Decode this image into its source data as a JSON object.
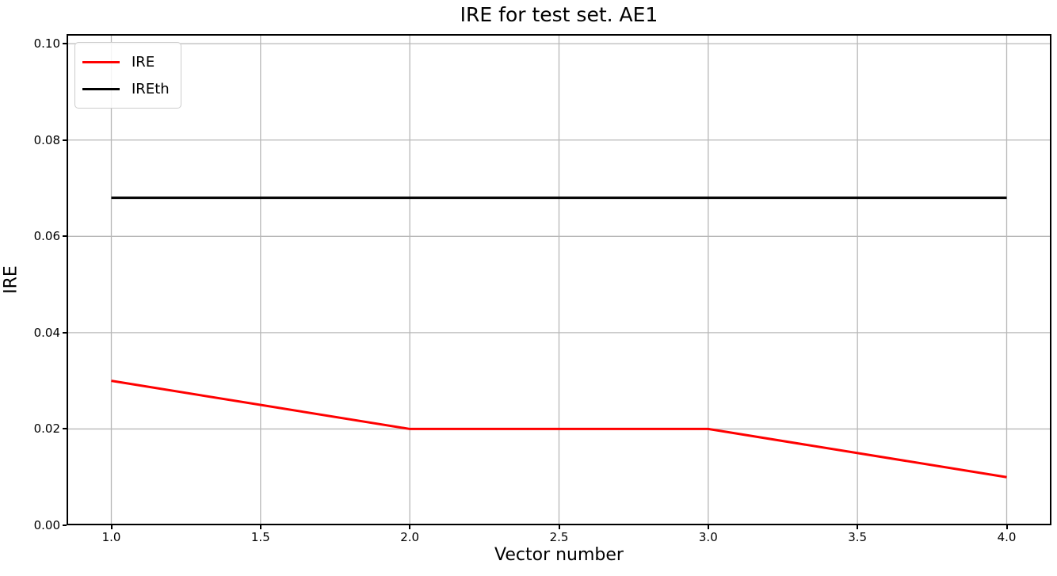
{
  "chart_data": {
    "type": "line",
    "title": "IRE for test set. AE1",
    "xlabel": "Vector number",
    "ylabel": "IRE",
    "x": [
      1,
      2,
      3,
      4
    ],
    "series": [
      {
        "name": "IRE",
        "color": "#ff0000",
        "values": [
          0.03,
          0.02,
          0.02,
          0.01
        ]
      },
      {
        "name": "IREth",
        "color": "#000000",
        "values": [
          0.068,
          0.068,
          0.068,
          0.068
        ]
      }
    ],
    "xlim": [
      0.85,
      4.15
    ],
    "ylim": [
      0,
      0.102
    ],
    "x_ticks": [
      {
        "value": 1.0,
        "label": "1.0"
      },
      {
        "value": 1.5,
        "label": "1.5"
      },
      {
        "value": 2.0,
        "label": "2.0"
      },
      {
        "value": 2.5,
        "label": "2.5"
      },
      {
        "value": 3.0,
        "label": "3.0"
      },
      {
        "value": 3.5,
        "label": "3.5"
      },
      {
        "value": 4.0,
        "label": "4.0"
      }
    ],
    "y_ticks": [
      {
        "value": 0.0,
        "label": "0.00"
      },
      {
        "value": 0.02,
        "label": "0.02"
      },
      {
        "value": 0.04,
        "label": "0.04"
      },
      {
        "value": 0.06,
        "label": "0.06"
      },
      {
        "value": 0.08,
        "label": "0.08"
      },
      {
        "value": 0.1,
        "label": "0.10"
      }
    ],
    "grid": true,
    "grid_color": "#b8b8b8",
    "line_width": 3,
    "legend_position": "upper-left"
  }
}
